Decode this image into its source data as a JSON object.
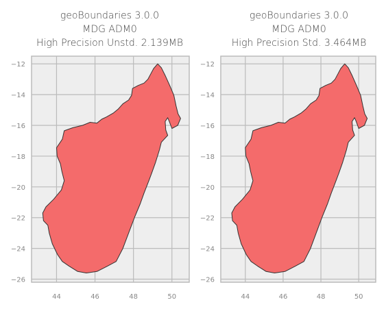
{
  "panels": [
    {
      "title_lines": [
        "geoBoundaries 3.0.0",
        "MDG ADM0",
        "High Precision Unstd. 2.139MB"
      ],
      "xlim": [
        42.7,
        50.9
      ],
      "ylim": [
        -26.2,
        -11.5
      ],
      "xticks": [
        44,
        46,
        48,
        50
      ],
      "yticks": [
        -12,
        -14,
        -16,
        -18,
        -20,
        -22,
        -24,
        -26
      ]
    },
    {
      "title_lines": [
        "geoBoundaries 3.0.0",
        "MDG ADM0",
        "High Precision Std. 3.464MB"
      ],
      "xlim": [
        42.7,
        50.9
      ],
      "ylim": [
        -26.2,
        -11.5
      ],
      "xticks": [
        44,
        46,
        48,
        50
      ],
      "yticks": [
        -12,
        -14,
        -16,
        -18,
        -20,
        -22,
        -24,
        -26
      ]
    }
  ],
  "style": {
    "background": "#eeeeee",
    "grid": "#bbbbbb",
    "fill": "#f46b6b",
    "stroke": "#333333"
  },
  "shape_lonlat": [
    [
      49.26,
      -12.0
    ],
    [
      49.45,
      -12.25
    ],
    [
      49.65,
      -12.75
    ],
    [
      49.9,
      -13.45
    ],
    [
      50.1,
      -14.05
    ],
    [
      50.22,
      -14.75
    ],
    [
      50.32,
      -15.25
    ],
    [
      50.45,
      -15.55
    ],
    [
      50.3,
      -16.0
    ],
    [
      50.0,
      -16.2
    ],
    [
      49.85,
      -15.7
    ],
    [
      49.78,
      -15.5
    ],
    [
      49.65,
      -15.75
    ],
    [
      49.68,
      -16.3
    ],
    [
      49.78,
      -16.65
    ],
    [
      49.45,
      -17.1
    ],
    [
      49.35,
      -17.6
    ],
    [
      49.15,
      -18.4
    ],
    [
      48.95,
      -19.1
    ],
    [
      48.8,
      -19.6
    ],
    [
      48.55,
      -20.4
    ],
    [
      48.35,
      -21.1
    ],
    [
      48.05,
      -22.0
    ],
    [
      47.75,
      -23.0
    ],
    [
      47.45,
      -24.0
    ],
    [
      47.1,
      -24.85
    ],
    [
      46.65,
      -25.15
    ],
    [
      46.1,
      -25.5
    ],
    [
      45.55,
      -25.6
    ],
    [
      45.1,
      -25.5
    ],
    [
      44.65,
      -25.15
    ],
    [
      44.3,
      -24.85
    ],
    [
      44.05,
      -24.4
    ],
    [
      43.78,
      -23.7
    ],
    [
      43.62,
      -23.0
    ],
    [
      43.55,
      -22.5
    ],
    [
      43.32,
      -22.2
    ],
    [
      43.28,
      -21.7
    ],
    [
      43.45,
      -21.3
    ],
    [
      43.85,
      -20.8
    ],
    [
      44.25,
      -20.2
    ],
    [
      44.4,
      -19.6
    ],
    [
      44.28,
      -19.0
    ],
    [
      44.2,
      -18.5
    ],
    [
      44.03,
      -18.0
    ],
    [
      44.0,
      -17.45
    ],
    [
      44.3,
      -16.9
    ],
    [
      44.4,
      -16.35
    ],
    [
      44.85,
      -16.15
    ],
    [
      45.35,
      -16.0
    ],
    [
      45.75,
      -15.8
    ],
    [
      46.1,
      -15.85
    ],
    [
      46.35,
      -15.6
    ],
    [
      46.6,
      -15.45
    ],
    [
      46.95,
      -15.2
    ],
    [
      47.2,
      -14.95
    ],
    [
      47.45,
      -14.6
    ],
    [
      47.75,
      -14.35
    ],
    [
      47.9,
      -14.05
    ],
    [
      47.95,
      -13.6
    ],
    [
      48.25,
      -13.4
    ],
    [
      48.55,
      -13.25
    ],
    [
      48.75,
      -13.0
    ],
    [
      48.9,
      -12.65
    ],
    [
      49.05,
      -12.3
    ],
    [
      49.26,
      -12.0
    ]
  ]
}
